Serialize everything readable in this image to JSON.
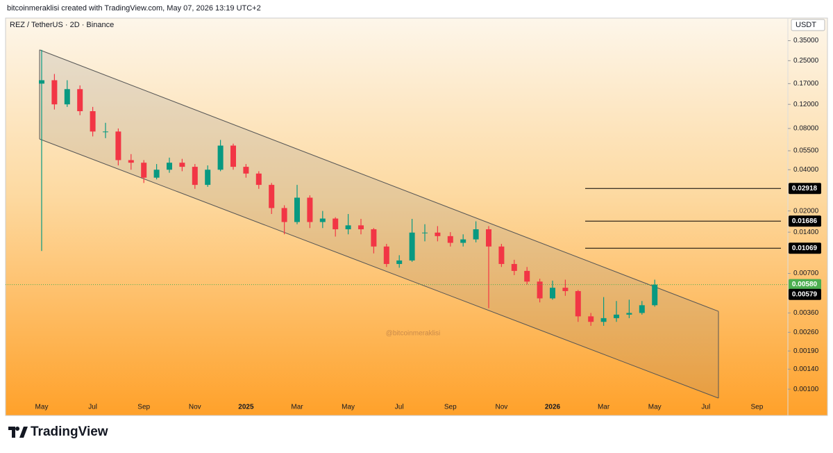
{
  "header": "bitcoinmeraklisi created with TradingView.com, May 07, 2026 13:19 UTC+2",
  "logo": "TradingView",
  "chart_data": {
    "type": "candlestick",
    "title": "REZ / TetherUS · 2D · Binance",
    "y_unit": "USDT",
    "watermark": "@bitcoinmeraklisi",
    "log_y": true,
    "up_color": "#089981",
    "down_color": "#f23645",
    "categories": [
      "May",
      null,
      null,
      null,
      "Jul",
      null,
      null,
      null,
      "Sep",
      null,
      null,
      null,
      "Nov",
      null,
      null,
      null,
      "2025",
      null,
      null,
      null,
      "Mar",
      null,
      null,
      null,
      "May",
      null,
      null,
      null,
      "Jul",
      null,
      null,
      null,
      "Sep",
      null,
      null,
      null,
      "Nov",
      null,
      null,
      null,
      "2026",
      null,
      null,
      null,
      "Mar",
      null,
      null,
      null,
      "May",
      null,
      null,
      null,
      "Jul",
      null,
      null,
      null,
      "Sep"
    ],
    "open": [
      0.17,
      0.18,
      0.12,
      0.155,
      0.107,
      0.076,
      0.076,
      0.047,
      0.045,
      0.035,
      0.04,
      0.045,
      0.042,
      0.031,
      0.04,
      0.06,
      0.042,
      0.0375,
      0.031,
      0.021,
      0.0166,
      0.025,
      0.0166,
      0.0176,
      0.0147,
      0.0157,
      0.0147,
      0.011,
      0.0082,
      0.0087,
      0.0139,
      0.0139,
      0.0131,
      0.0117,
      0.0124,
      0.0147,
      0.011,
      0.0082,
      0.0073,
      0.0061,
      0.0046,
      0.0055,
      0.0052,
      0.0034,
      0.0031,
      0.0033,
      0.0035,
      0.0036,
      0.0041,
      null,
      null,
      null,
      null,
      null,
      null,
      null,
      null
    ],
    "high": [
      0.3,
      0.2,
      0.18,
      0.165,
      0.115,
      0.088,
      0.08,
      0.052,
      0.047,
      0.044,
      0.049,
      0.048,
      0.044,
      0.043,
      0.066,
      0.062,
      0.044,
      0.039,
      0.032,
      0.022,
      0.031,
      0.026,
      0.02,
      0.018,
      0.019,
      0.0175,
      0.015,
      0.0115,
      0.0095,
      0.0175,
      0.016,
      0.0155,
      0.014,
      0.0135,
      0.0168,
      0.0155,
      0.0115,
      0.0088,
      0.0078,
      0.0064,
      0.0062,
      0.0063,
      0.0053,
      0.0036,
      0.0047,
      0.0044,
      0.0045,
      0.0044,
      0.0063,
      null,
      null,
      null,
      null,
      null,
      null,
      null,
      null
    ],
    "low": [
      0.0102,
      0.11,
      0.115,
      0.1,
      0.07,
      0.068,
      0.043,
      0.04,
      0.032,
      0.034,
      0.038,
      0.039,
      0.029,
      0.03,
      0.039,
      0.04,
      0.035,
      0.029,
      0.019,
      0.0135,
      0.016,
      0.015,
      0.015,
      0.013,
      0.0135,
      0.0135,
      0.0098,
      0.0078,
      0.0077,
      0.0085,
      0.012,
      0.012,
      0.011,
      0.011,
      0.0118,
      0.0039,
      0.0078,
      0.0068,
      0.0058,
      0.0043,
      0.0045,
      0.0048,
      0.0031,
      0.0029,
      0.0029,
      0.0031,
      0.0033,
      0.0035,
      0.004,
      null,
      null,
      null,
      null,
      null,
      null,
      null,
      null
    ],
    "close": [
      0.18,
      0.12,
      0.155,
      0.107,
      0.076,
      0.076,
      0.047,
      0.045,
      0.035,
      0.04,
      0.045,
      0.042,
      0.031,
      0.04,
      0.06,
      0.042,
      0.0375,
      0.031,
      0.021,
      0.0166,
      0.025,
      0.0166,
      0.0176,
      0.0147,
      0.0157,
      0.0147,
      0.011,
      0.0082,
      0.0087,
      0.0139,
      0.0139,
      0.0131,
      0.0117,
      0.0124,
      0.0147,
      0.011,
      0.0082,
      0.0073,
      0.0061,
      0.0046,
      0.0055,
      0.0052,
      0.0034,
      0.0031,
      0.0033,
      0.0035,
      0.0036,
      0.0041,
      0.0058,
      null,
      null,
      null,
      null,
      null,
      null,
      null,
      null
    ],
    "ylim": [
      0.00065,
      0.41
    ],
    "yticks": [
      {
        "value": 0.35,
        "label": "0.35000"
      },
      {
        "value": 0.25,
        "label": "0.25000"
      },
      {
        "value": 0.17,
        "label": "0.17000"
      },
      {
        "value": 0.12,
        "label": "0.12000"
      },
      {
        "value": 0.08,
        "label": "0.08000"
      },
      {
        "value": 0.055,
        "label": "0.05500"
      },
      {
        "value": 0.04,
        "label": "0.04000"
      },
      {
        "value": 0.02,
        "label": "0.02000"
      },
      {
        "value": 0.014,
        "label": "0.01400"
      },
      {
        "value": 0.007,
        "label": "0.00700"
      },
      {
        "value": 0.0036,
        "label": "0.00360"
      },
      {
        "value": 0.0026,
        "label": "0.00260"
      },
      {
        "value": 0.0019,
        "label": "0.00190"
      },
      {
        "value": 0.0014,
        "label": "0.00140"
      },
      {
        "value": 0.001,
        "label": "0.00100"
      }
    ],
    "channel": {
      "upper": [
        0.3,
        0.0037
      ],
      "lower": [
        0.067,
        0.00086
      ],
      "color": "#555555"
    },
    "levels": [
      {
        "value": 0.02918,
        "label": "0.02918"
      },
      {
        "value": 0.01686,
        "label": "0.01686"
      },
      {
        "value": 0.01069,
        "label": "0.01069"
      }
    ],
    "price_labels": [
      {
        "value": 0.0058,
        "label": "0.00580",
        "color": "#4caf50"
      },
      {
        "value": 0.00579,
        "label": "0.00579",
        "color": "#000000"
      }
    ]
  }
}
